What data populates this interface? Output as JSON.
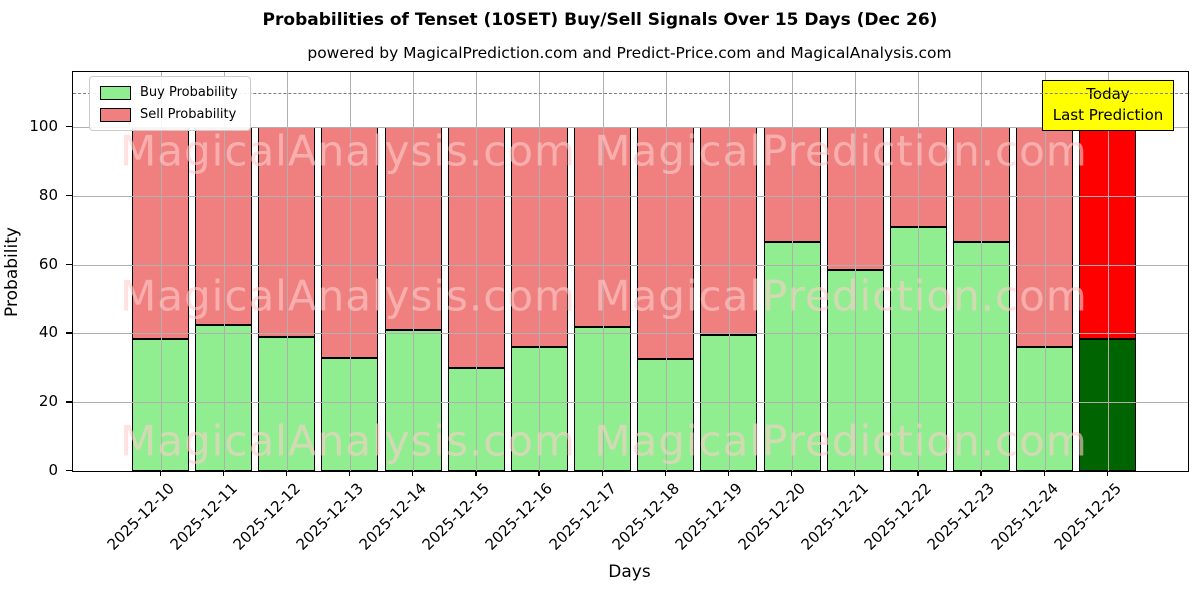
{
  "title": "Probabilities of Tenset (10SET) Buy/Sell Signals Over 15 Days (Dec 26)",
  "subtitle": "powered by MagicalPrediction.com and Predict-Price.com and MagicalAnalysis.com",
  "watermarks": [
    "MagicalAnalysis.com",
    "MagicalPrediction.com"
  ],
  "annotation": {
    "line1": "Today",
    "line2": "Last Prediction",
    "bg_color": "#ffff00"
  },
  "legend": [
    {
      "label": "Buy Probability",
      "color": "#90ee90"
    },
    {
      "label": "Sell Probability",
      "color": "#f08080"
    }
  ],
  "colors": {
    "buy": "#90ee90",
    "sell": "#f08080",
    "buy_today": "#006400",
    "sell_today": "#ff0000",
    "grid": "#b0b0b0",
    "dashed_line": "#7f7f7f",
    "annotation_bg": "#ffff00"
  },
  "chart_data": {
    "type": "bar",
    "stacked": true,
    "title": "Probabilities of Tenset (10SET) Buy/Sell Signals Over 15 Days (Dec 26)",
    "xlabel": "Days",
    "ylabel": "Probability",
    "ylim": [
      0,
      116
    ],
    "yticks": [
      0,
      20,
      40,
      60,
      80,
      100
    ],
    "dashed_line_y": 110,
    "grid": true,
    "legend_position": "upper left",
    "categories": [
      "2025-12-10",
      "2025-12-11",
      "2025-12-12",
      "2025-12-13",
      "2025-12-14",
      "2025-12-15",
      "2025-12-16",
      "2025-12-17",
      "2025-12-18",
      "2025-12-19",
      "2025-12-20",
      "2025-12-21",
      "2025-12-22",
      "2025-12-23",
      "2025-12-24",
      "2025-12-25"
    ],
    "series": [
      {
        "name": "Buy Probability",
        "color": "#90ee90",
        "last_bar_color": "#006400",
        "values": [
          38.5,
          42.5,
          39,
          33,
          41,
          30,
          36,
          42,
          32.5,
          39.5,
          66.5,
          58.5,
          71,
          66.5,
          36,
          38.5
        ]
      },
      {
        "name": "Sell Probability",
        "color": "#f08080",
        "last_bar_color": "#ff0000",
        "values": [
          61.5,
          57.5,
          61,
          67,
          59,
          70,
          64,
          58,
          67.5,
          60.5,
          33.5,
          41.5,
          29,
          33.5,
          64,
          61.5
        ]
      }
    ],
    "last_bar_annotation": "Today / Last Prediction"
  }
}
